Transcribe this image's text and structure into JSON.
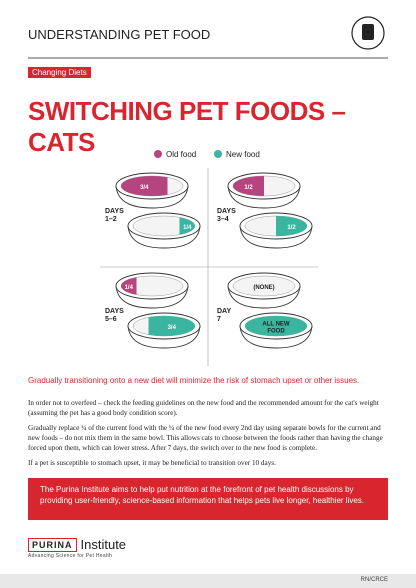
{
  "header": {
    "title": "UNDERSTANDING PET FOOD"
  },
  "tag": "Changing Diets",
  "title": "SWITCHING PET FOODS – CATS",
  "legend": {
    "old": "Old food",
    "new": "New food"
  },
  "panels": [
    {
      "day": [
        "DAYS",
        "1–2"
      ],
      "old": "3/4",
      "new": "1/4"
    },
    {
      "day": [
        "DAYS",
        "3–4"
      ],
      "old": "1/2",
      "new": "1/2"
    },
    {
      "day": [
        "DAYS",
        "5–6"
      ],
      "old": "1/4",
      "new": "3/4"
    },
    {
      "day": [
        "DAY",
        "7"
      ],
      "old": "(NONE)",
      "new": [
        "ALL NEW",
        "FOOD"
      ]
    }
  ],
  "lead": "Gradually transitioning onto a new diet will minimize the risk of stomach upset or other issues.",
  "paragraphs": [
    "In order not to overfeed – check the feeding guidelines on the new food and the recommended amount for the cat's weight (assuming the pet has a good body condition score).",
    "Gradually replace ¼ of the current food with the ¼ of the new food every 2nd day using separate bowls for the current and new foods – do not mix them in the same bowl. This allows cats to choose between the foods rather than having the change forced upon them, which can lower stress. After 7 days, the switch over to the new food is complete.",
    "If a pet is susceptible to stomach upset, it may be beneficial to transition over 10 days."
  ],
  "callout": "The Purina Institute aims to help put nutrition at the forefront of pet health discussions by providing user-friendly, science-based information that helps pets live longer, healthier lives.",
  "logo": {
    "brand": "PURINA",
    "name": "Institute",
    "tagline": "Advancing Science for Pet Health"
  },
  "footer": "RN/CRCE"
}
